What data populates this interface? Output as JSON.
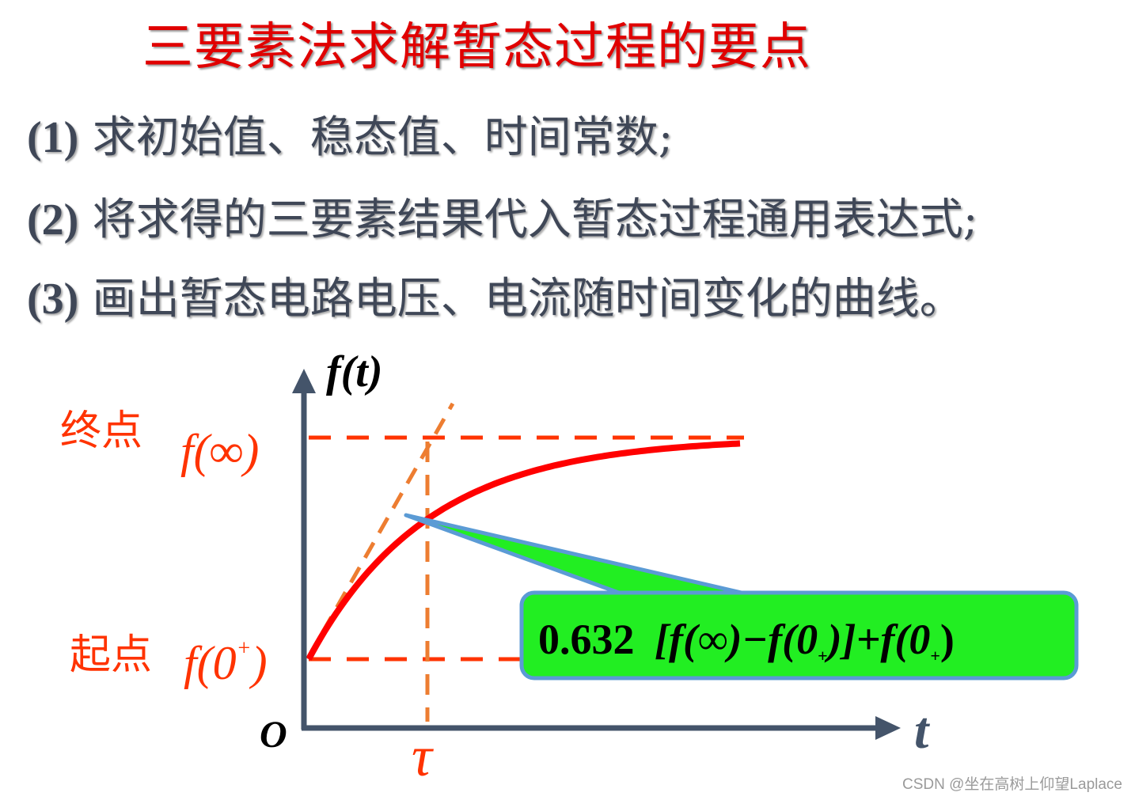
{
  "title": "三要素法求解暂态过程的要点",
  "steps": [
    {
      "num": "(1)",
      "text": "求初始值、稳态值、时间常数;"
    },
    {
      "num": "(2)",
      "text": "将求得的三要素结果代入暂态过程通用表达式;"
    },
    {
      "num": "(3)",
      "text": "画出暂态电路电压、电流随时间变化的曲线。"
    }
  ],
  "diagram": {
    "y_axis_label": "f(t)",
    "x_axis_label": "t",
    "origin_label": "O",
    "end_point_label": "终点",
    "end_value_label": "f(∞)",
    "start_point_label": "起点",
    "start_value_label_base": "f(0",
    "start_value_label_sup": "+",
    "start_value_label_close": ")",
    "tau_label": "τ",
    "callout": {
      "coef": "0.632",
      "part1": "[f(∞)−f(0",
      "sub1": "+",
      "part2": ")]+f(0",
      "sub2": "+",
      "part3": ")"
    },
    "colors": {
      "curve": "#ff0000",
      "axis": "#44546a",
      "dashed_levels": "#ff3300",
      "tangent": "#ed7d31",
      "callout_fill": "#22ee22",
      "callout_border": "#5b9bd5",
      "labels": "#ff3300"
    }
  },
  "watermark": "CSDN @坐在高树上仰望Laplace"
}
